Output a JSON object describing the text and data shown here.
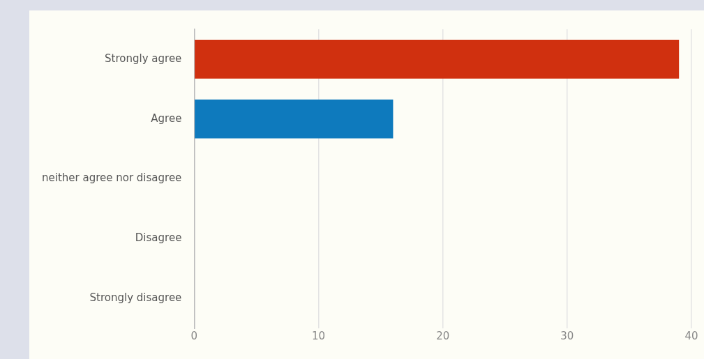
{
  "chart_data": {
    "type": "bar",
    "orientation": "horizontal",
    "categories": [
      "Strongly agree",
      "Agree",
      "neither agree nor disagree",
      "Disagree",
      "Strongly disagree"
    ],
    "values": [
      39,
      16,
      0,
      0,
      0
    ],
    "colors": [
      "#d0300f",
      "#0e7abd",
      "#0e7abd",
      "#0e7abd",
      "#0e7abd"
    ],
    "xlim": [
      0,
      40
    ],
    "xticks": [
      0,
      10,
      20,
      30,
      40
    ],
    "grid": "x",
    "legend": false
  }
}
